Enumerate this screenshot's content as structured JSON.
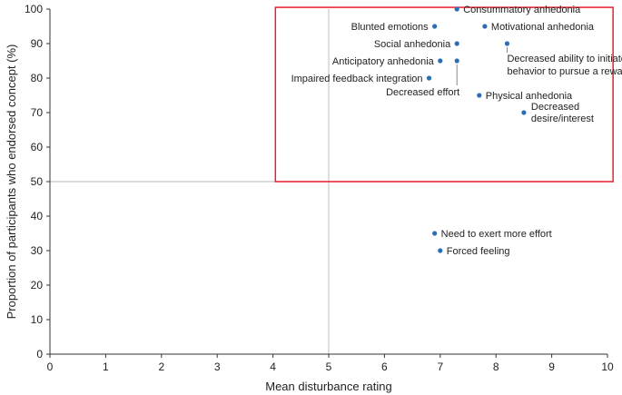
{
  "chart_data": {
    "type": "scatter",
    "title": "",
    "xlabel": "Mean disturbance rating",
    "ylabel": "Proportion of participants who endorsed concept (%)",
    "xlim": [
      0,
      10
    ],
    "ylim": [
      0,
      100
    ],
    "x_ticks": [
      "0",
      "1",
      "2",
      "3",
      "4",
      "5",
      "6",
      "7",
      "8",
      "9",
      "10"
    ],
    "y_ticks": [
      "0",
      "10",
      "20",
      "30",
      "40",
      "50",
      "60",
      "70",
      "80",
      "90",
      "100"
    ],
    "grid": false,
    "reference_lines": {
      "x": 5,
      "y": 50
    },
    "highlight_region": {
      "x": [
        4.5,
        10.1
      ],
      "y": [
        50,
        100.5
      ],
      "color": "#e8212d"
    },
    "marker_color": "#2e6db4",
    "points": [
      {
        "label": "Consummatory anhedonia",
        "x": 7.3,
        "y": 100
      },
      {
        "label": "Blunted emotions",
        "x": 6.9,
        "y": 95
      },
      {
        "label": "Motivational anhedonia",
        "x": 7.8,
        "y": 95
      },
      {
        "label": "Social anhedonia",
        "x": 7.3,
        "y": 90
      },
      {
        "label": "Decreased ability to initiate behavior to pursue a reward",
        "x": 8.2,
        "y": 90
      },
      {
        "label": "Anticipatory anhedonia",
        "x": 7.0,
        "y": 85
      },
      {
        "label": "Decreased effort",
        "x": 7.3,
        "y": 85
      },
      {
        "label": "Impaired feedback integration",
        "x": 6.8,
        "y": 80
      },
      {
        "label": "Physical anhedonia",
        "x": 7.7,
        "y": 75
      },
      {
        "label": "Decreased desire/interest",
        "x": 8.5,
        "y": 70
      },
      {
        "label": "Need to exert more effort",
        "x": 6.9,
        "y": 35
      },
      {
        "label": "Forced feeling",
        "x": 7.0,
        "y": 30
      }
    ]
  }
}
